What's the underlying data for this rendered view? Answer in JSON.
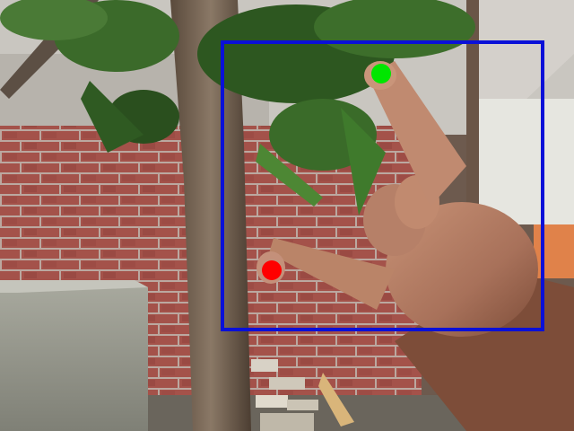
{
  "scene": {
    "description_colors": {
      "detection_box": "#0a10d8",
      "index_fingertip_marker": "#00e600",
      "thumb_tip_marker": "#ff0000",
      "brick": "#9c4b43",
      "mortar": "#b9a9a2",
      "foliage": "#2f5a22",
      "skin": "#b07a5e"
    },
    "overlays": [
      {
        "kind": "detection-box",
        "color": "#0a10d8"
      },
      {
        "kind": "index-fingertip-marker",
        "color": "#00e600"
      },
      {
        "kind": "thumb-tip-marker",
        "color": "#ff0000"
      }
    ]
  }
}
